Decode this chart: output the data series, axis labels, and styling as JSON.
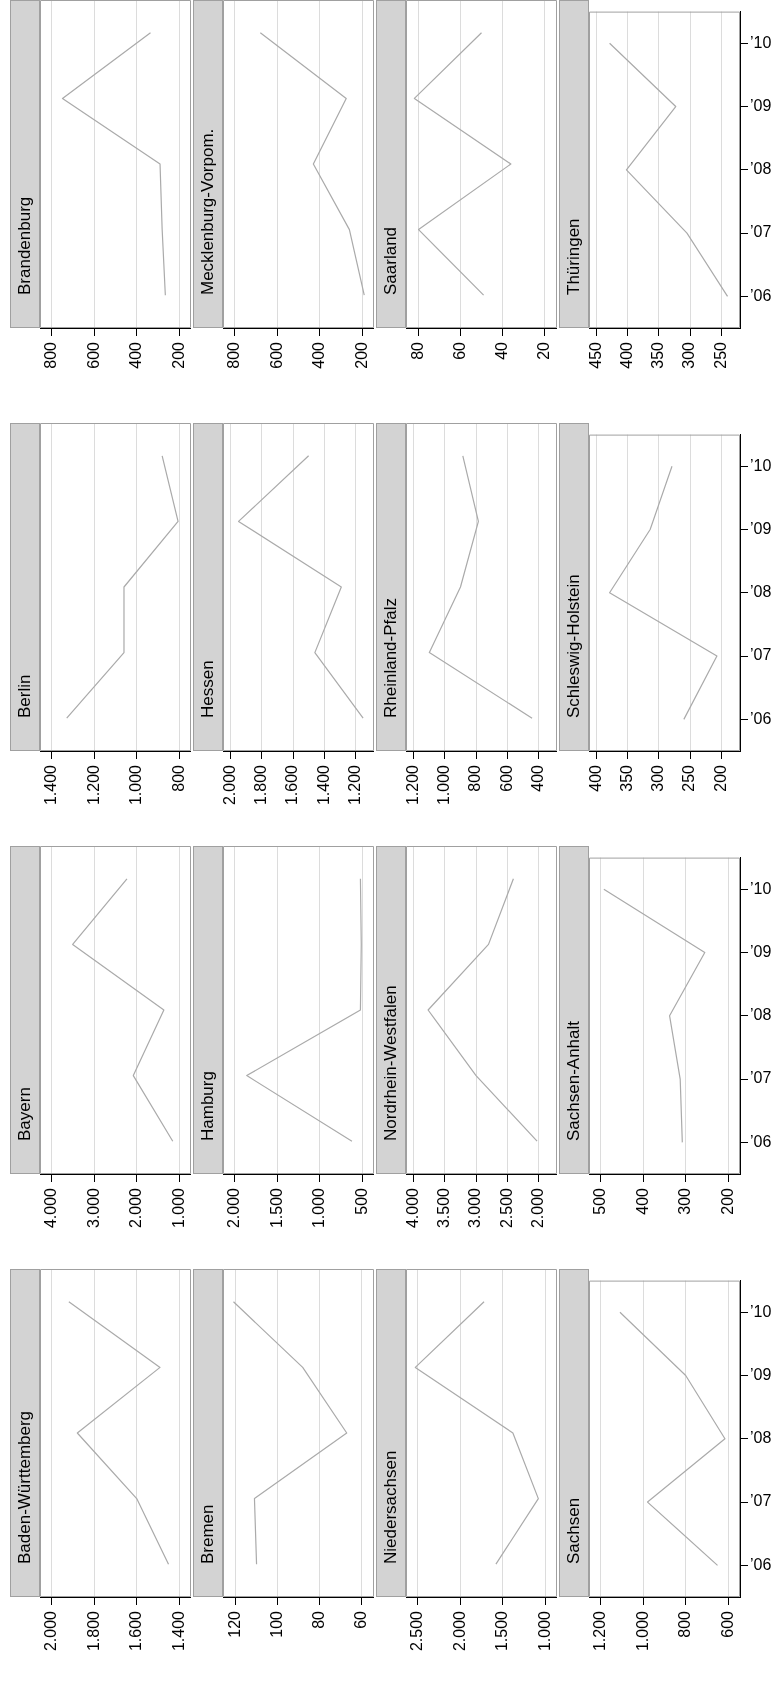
{
  "chart_data": [
    {
      "type": "line",
      "orientation": "horizontal",
      "title": "Baden-Württemberg",
      "categories": [
        null,
        null,
        null,
        null,
        null
      ],
      "values": [
        1920,
        1490,
        1880,
        1600,
        1450
      ],
      "color": "#aaaaaa",
      "xlim": [
        2056,
        1344
      ],
      "xticks": [
        {
          "value": 1400,
          "label": "1.400"
        },
        {
          "value": 1600,
          "label": "1.600"
        },
        {
          "value": 1800,
          "label": "1.800"
        },
        {
          "value": 2000,
          "label": "2.000"
        }
      ],
      "grid": "x",
      "tick_labels": "x"
    },
    {
      "type": "line",
      "orientation": "horizontal",
      "title": "Bayern",
      "categories": [
        null,
        null,
        null,
        null,
        null
      ],
      "values": [
        2230,
        3510,
        1360,
        2080,
        1150
      ],
      "color": "#aaaaaa",
      "xlim": [
        4280,
        720
      ],
      "xticks": [
        {
          "value": 1000,
          "label": "1.000"
        },
        {
          "value": 2000,
          "label": "2.000"
        },
        {
          "value": 3000,
          "label": "3.000"
        },
        {
          "value": 4000,
          "label": "4.000"
        }
      ],
      "grid": "x",
      "tick_labels": "x"
    },
    {
      "type": "line",
      "orientation": "horizontal",
      "title": "Berlin",
      "categories": [
        null,
        null,
        null,
        null,
        null
      ],
      "values": [
        880,
        805,
        1060,
        1060,
        1330
      ],
      "color": "#aaaaaa",
      "xlim": [
        1456,
        744
      ],
      "xticks": [
        800,
        {
          "value": 1000,
          "label": "1.000"
        },
        {
          "value": 1200,
          "label": "1.200"
        },
        {
          "value": 1400,
          "label": "1.400"
        }
      ],
      "grid": "x",
      "tick_labels": "x"
    },
    {
      "type": "line",
      "orientation": "horizontal",
      "title": "Brandenburg",
      "categories": [
        null,
        null,
        null,
        null,
        null
      ],
      "values": [
        335,
        750,
        290,
        280,
        265
      ],
      "color": "#aaaaaa",
      "xlim": [
        856,
        144
      ],
      "xticks": [
        200,
        400,
        600,
        800
      ],
      "grid": "x",
      "tick_labels": "x"
    },
    {
      "type": "line",
      "orientation": "horizontal",
      "title": "Bremen",
      "categories": [
        null,
        null,
        null,
        null,
        null
      ],
      "values": [
        121,
        88,
        67,
        111,
        110
      ],
      "color": "#aaaaaa",
      "xlim": [
        126,
        54
      ],
      "xticks": [
        60,
        80,
        100,
        120
      ],
      "grid": "x",
      "tick_labels": "x"
    },
    {
      "type": "line",
      "orientation": "horizontal",
      "title": "Hamburg",
      "categories": [
        null,
        null,
        null,
        null,
        null
      ],
      "values": [
        520,
        510,
        520,
        1860,
        620
      ],
      "color": "#aaaaaa",
      "xlim": [
        2140,
        360
      ],
      "xticks": [
        500,
        {
          "value": 1000,
          "label": "1.000"
        },
        {
          "value": 1500,
          "label": "1.500"
        },
        {
          "value": 2000,
          "label": "2.000"
        }
      ],
      "grid": "x",
      "tick_labels": "x"
    },
    {
      "type": "line",
      "orientation": "horizontal",
      "title": "Hessen",
      "categories": [
        null,
        null,
        null,
        null,
        null
      ],
      "values": [
        1500,
        1950,
        1290,
        1460,
        1150
      ],
      "color": "#aaaaaa",
      "xlim": [
        2050,
        1080
      ],
      "xticks": [
        {
          "value": 1200,
          "label": "1.200"
        },
        {
          "value": 1400,
          "label": "1.400"
        },
        {
          "value": 1600,
          "label": "1.600"
        },
        {
          "value": 1800,
          "label": "1.800"
        },
        {
          "value": 2000,
          "label": "2.000"
        }
      ],
      "grid": "x",
      "tick_labels": "x"
    },
    {
      "type": "line",
      "orientation": "horizontal",
      "title": "Mecklenburg-Vorpom.",
      "categories": [
        null,
        null,
        null,
        null,
        null
      ],
      "values": [
        680,
        275,
        430,
        260,
        190
      ],
      "color": "#aaaaaa",
      "xlim": [
        856,
        144
      ],
      "xticks": [
        200,
        400,
        600,
        800
      ],
      "grid": "x",
      "tick_labels": "x"
    },
    {
      "type": "line",
      "orientation": "horizontal",
      "title": "Niedersachsen",
      "categories": [
        null,
        null,
        null,
        null,
        null
      ],
      "values": [
        1720,
        2530,
        1380,
        1080,
        1580
      ],
      "color": "#aaaaaa",
      "xlim": [
        2640,
        860
      ],
      "xticks": [
        {
          "value": 1000,
          "label": "1.000"
        },
        {
          "value": 1500,
          "label": "1.500"
        },
        {
          "value": 2000,
          "label": "2.000"
        },
        {
          "value": 2500,
          "label": "2.500"
        }
      ],
      "grid": "x",
      "tick_labels": "x"
    },
    {
      "type": "line",
      "orientation": "horizontal",
      "title": "Nordrhein-Westfalen",
      "categories": [
        null,
        null,
        null,
        null,
        null
      ],
      "values": [
        2400,
        2800,
        3770,
        3000,
        2020
      ],
      "color": "#aaaaaa",
      "xlim": [
        4125,
        1700
      ],
      "xticks": [
        {
          "value": 2000,
          "label": "2.000"
        },
        {
          "value": 2500,
          "label": "2.500"
        },
        {
          "value": 3000,
          "label": "3.000"
        },
        {
          "value": 3500,
          "label": "3.500"
        },
        {
          "value": 4000,
          "label": "4.000"
        }
      ],
      "grid": "x",
      "tick_labels": "x"
    },
    {
      "type": "line",
      "orientation": "horizontal",
      "title": "Rheinland-Pfalz",
      "categories": [
        null,
        null,
        null,
        null,
        null
      ],
      "values": [
        885,
        785,
        900,
        1100,
        440
      ],
      "color": "#aaaaaa",
      "xlim": [
        1250,
        280
      ],
      "xticks": [
        400,
        600,
        800,
        {
          "value": 1000,
          "label": "1.000"
        },
        {
          "value": 1200,
          "label": "1.200"
        }
      ],
      "grid": "x",
      "tick_labels": "x"
    },
    {
      "type": "line",
      "orientation": "horizontal",
      "title": "Saarland",
      "categories": [
        null,
        null,
        null,
        null,
        null
      ],
      "values": [
        50,
        82,
        36,
        80,
        49
      ],
      "color": "#aaaaaa",
      "xlim": [
        86,
        14
      ],
      "xticks": [
        20,
        40,
        60,
        80
      ],
      "grid": "x",
      "tick_labels": "x"
    },
    {
      "type": "line",
      "orientation": "horizontal",
      "title": "Sachsen",
      "categories": [
        "’10",
        "’09",
        "’08",
        "’07",
        "’06"
      ],
      "values": [
        1110,
        800,
        615,
        980,
        650
      ],
      "color": "#aaaaaa",
      "xlim": [
        1256,
        544
      ],
      "xticks": [
        600,
        800,
        {
          "value": 1000,
          "label": "1.000"
        },
        {
          "value": 1200,
          "label": "1.200"
        }
      ],
      "grid": "x"
    },
    {
      "type": "line",
      "orientation": "horizontal",
      "title": "Sachsen-Anhalt",
      "categories": [
        "’10",
        "’09",
        "’08",
        "’07",
        "’06"
      ],
      "values": [
        493,
        255,
        338,
        313,
        308
      ],
      "color": "#aaaaaa",
      "xlim": [
        528,
        172
      ],
      "xticks": [
        200,
        300,
        400,
        500
      ],
      "grid": "x"
    },
    {
      "type": "line",
      "orientation": "horizontal",
      "title": "Schleswig-Holstein",
      "categories": [
        "’10",
        "’09",
        "’08",
        "’07",
        "’06"
      ],
      "values": [
        279,
        314,
        379,
        207,
        260
      ],
      "color": "#aaaaaa",
      "xlim": [
        412,
        170
      ],
      "xticks": [
        200,
        250,
        300,
        350,
        400
      ],
      "grid": "x"
    },
    {
      "type": "line",
      "orientation": "horizontal",
      "title": "Thüringen",
      "categories": [
        "’10",
        "’09",
        "’08",
        "’07",
        "’06"
      ],
      "values": [
        429,
        323,
        402,
        305,
        240
      ],
      "color": "#aaaaaa",
      "xlim": [
        462,
        220
      ],
      "xticks": [
        250,
        300,
        350,
        400,
        450
      ],
      "grid": "x"
    }
  ]
}
